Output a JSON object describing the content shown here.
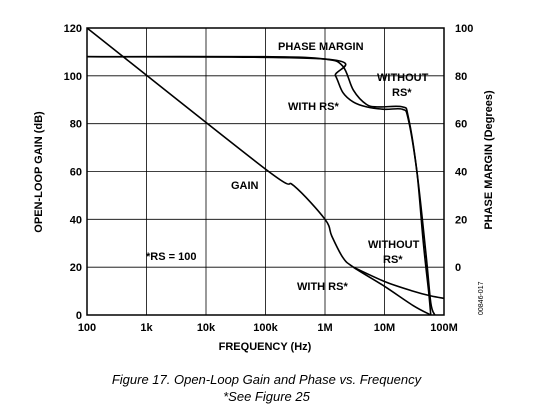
{
  "chart_data": {
    "type": "line",
    "x_axis": {
      "label": "FREQUENCY (Hz)",
      "scale": "log",
      "range": [
        100,
        100000000
      ],
      "ticks": [
        100,
        1000,
        10000,
        100000,
        1000000,
        10000000,
        100000000
      ],
      "tick_labels": [
        "100",
        "1k",
        "10k",
        "100k",
        "1M",
        "10M",
        "100M"
      ]
    },
    "y_axis_left": {
      "label": "OPEN-LOOP GAIN (dB)",
      "range": [
        0,
        120
      ],
      "ticks": [
        0,
        20,
        40,
        60,
        80,
        100,
        120
      ],
      "tick_labels": [
        "0",
        "20",
        "40",
        "60",
        "80",
        "100",
        "120"
      ]
    },
    "y_axis_right": {
      "label": "PHASE MARGIN (Degrees)",
      "range": [
        -20,
        100
      ],
      "ticks": [
        0,
        20,
        40,
        60,
        80,
        100
      ],
      "tick_labels": [
        "0",
        "20",
        "40",
        "60",
        "80",
        "100"
      ]
    },
    "grid": true,
    "series": [
      {
        "name": "GAIN",
        "axis": "left",
        "points": [
          [
            100,
            120
          ],
          [
            100000,
            61
          ],
          [
            300000,
            54
          ],
          [
            1000000,
            40
          ],
          [
            1300000,
            33
          ],
          [
            2000000,
            24
          ],
          [
            3000000,
            20
          ],
          [
            10000000,
            12
          ],
          [
            30000000,
            4
          ],
          [
            60000000,
            0
          ]
        ]
      },
      {
        "name": "GAIN WITHOUT RS*",
        "axis": "left",
        "points": [
          [
            3000000,
            20
          ],
          [
            10000000,
            14
          ],
          [
            30000000,
            10
          ],
          [
            60000000,
            8
          ],
          [
            100000000,
            7
          ]
        ]
      },
      {
        "name": "PHASE MARGIN WITHOUT RS*",
        "axis": "right",
        "points": [
          [
            100,
            88
          ],
          [
            100000,
            88
          ],
          [
            1000000,
            87
          ],
          [
            2000000,
            84
          ],
          [
            3000000,
            74
          ],
          [
            5000000,
            68
          ],
          [
            8000000,
            67
          ],
          [
            20000000,
            67
          ],
          [
            25000000,
            63
          ],
          [
            35000000,
            40
          ],
          [
            45000000,
            10
          ],
          [
            55000000,
            -10
          ],
          [
            60000000,
            -20
          ]
        ]
      },
      {
        "name": "PHASE MARGIN WITH RS*",
        "axis": "right",
        "points": [
          [
            100,
            88
          ],
          [
            1000000,
            87
          ],
          [
            1500000,
            80
          ],
          [
            2000000,
            73
          ],
          [
            3000000,
            69
          ],
          [
            5000000,
            67
          ],
          [
            10000000,
            66
          ],
          [
            20000000,
            66
          ],
          [
            25000000,
            62
          ],
          [
            35000000,
            40
          ],
          [
            50000000,
            5
          ],
          [
            60000000,
            -15
          ],
          [
            70000000,
            -20
          ]
        ]
      }
    ],
    "annotations": {
      "phase_margin": "PHASE MARGIN",
      "without_rs_top": "WITHOUT",
      "rs_top": "RS*",
      "with_rs_top": "WITH RS*",
      "gain": "GAIN",
      "rs_value": "*RS = 100",
      "without_rs_bottom": "WITHOUT",
      "rs_bottom": "RS*",
      "with_rs_bottom": "WITH RS*",
      "figure_code": "00846-017"
    }
  },
  "caption": {
    "line1": "Figure 17. Open-Loop Gain and Phase vs. Frequency",
    "line2": "*See Figure 25"
  }
}
